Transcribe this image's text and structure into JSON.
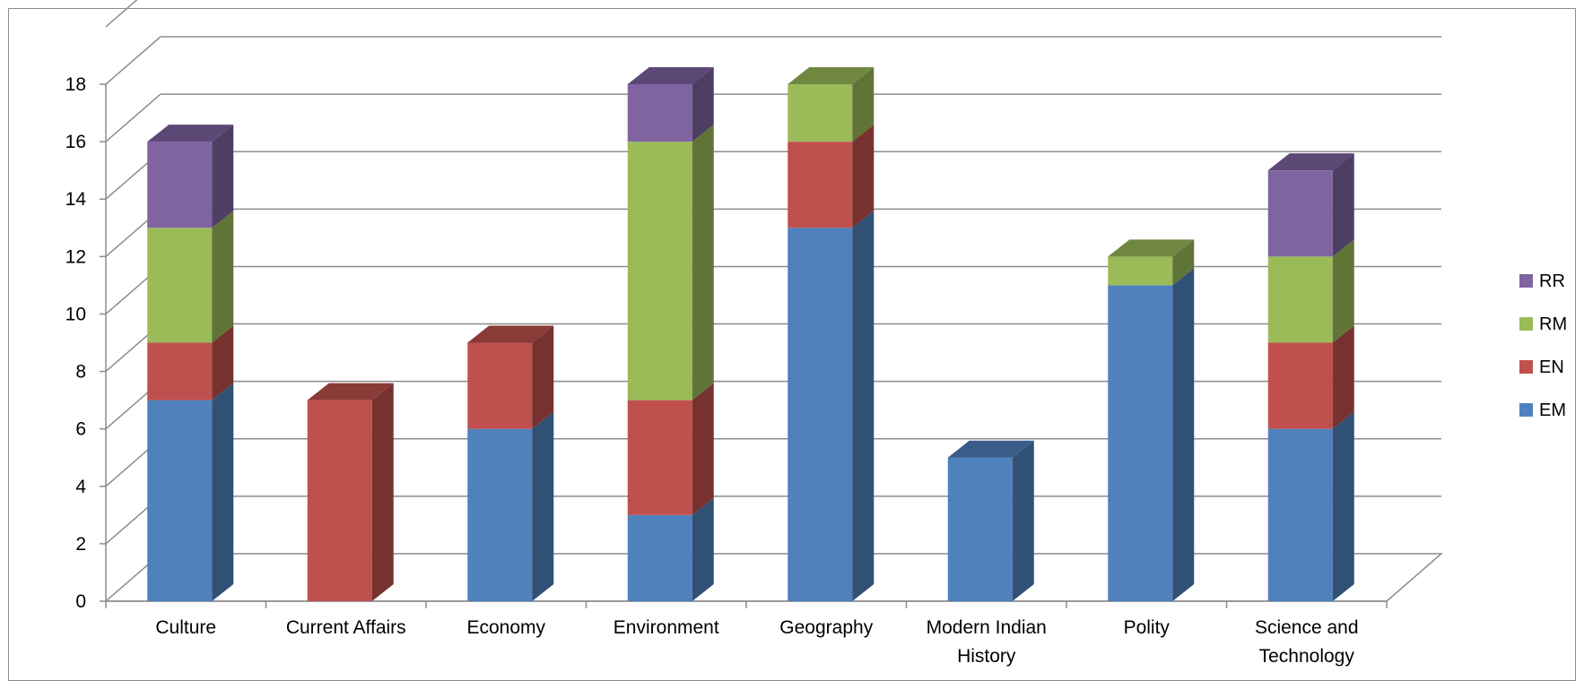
{
  "chart_data": {
    "type": "bar",
    "stacked": true,
    "three_d": true,
    "categories": [
      [
        "Culture"
      ],
      [
        "Current Affairs"
      ],
      [
        "Economy"
      ],
      [
        "Environment"
      ],
      [
        "Geography"
      ],
      [
        "Modern Indian",
        "History"
      ],
      [
        "Polity"
      ],
      [
        "Science and",
        "Technology"
      ]
    ],
    "series": [
      {
        "name": "EM",
        "color": "#4F81BD",
        "values": [
          7,
          0,
          6,
          3,
          13,
          5,
          11,
          6
        ]
      },
      {
        "name": "EN",
        "color": "#C0504D",
        "values": [
          2,
          7,
          3,
          4,
          3,
          0,
          0,
          3
        ]
      },
      {
        "name": "RM",
        "color": "#9BBB59",
        "values": [
          4,
          0,
          0,
          9,
          2,
          0,
          1,
          3
        ]
      },
      {
        "name": "RR",
        "color": "#8064A2",
        "values": [
          3,
          0,
          0,
          2,
          0,
          0,
          0,
          3
        ]
      }
    ],
    "ylim": [
      0,
      18
    ],
    "yticks": [
      "0",
      "2",
      "4",
      "6",
      "8",
      "10",
      "12",
      "14",
      "16",
      "18"
    ],
    "grid": true,
    "legend": "right",
    "title": "",
    "xlabel": "",
    "ylabel": ""
  }
}
